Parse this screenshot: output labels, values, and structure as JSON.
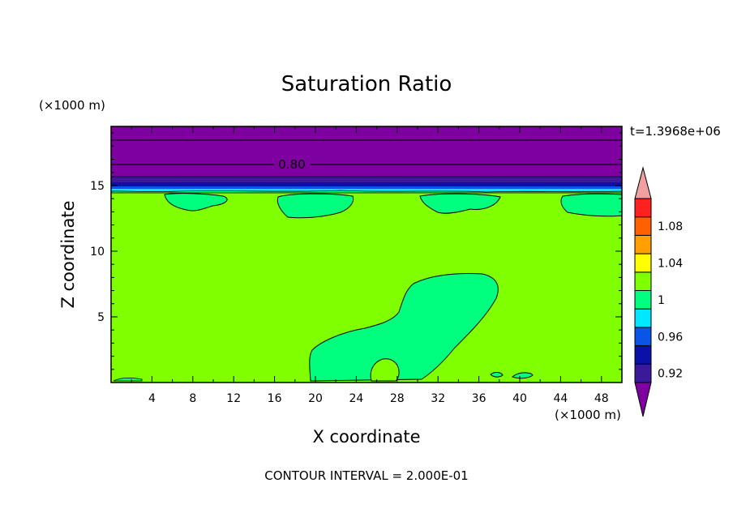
{
  "chart_data": {
    "type": "heatmap",
    "title": "Saturation Ratio",
    "xlabel": "X coordinate",
    "ylabel": "Z coordinate",
    "x_unit": "(×1000 m)",
    "y_unit": "(×1000 m)",
    "time_label": "t=1.3968e+06",
    "footer": "CONTOUR INTERVAL = 2.000E-01",
    "xlim": [
      0,
      50
    ],
    "ylim": [
      0,
      19.5
    ],
    "x_ticks": [
      "4",
      "8",
      "12",
      "16",
      "20",
      "24",
      "28",
      "32",
      "36",
      "40",
      "44",
      "48"
    ],
    "y_ticks": [
      "5",
      "10",
      "15"
    ],
    "contour_labels": [
      {
        "text": "0.80",
        "x": 18,
        "y": 17
      }
    ],
    "colorbar": {
      "levels": [
        0.92,
        0.94,
        0.96,
        0.98,
        1.0,
        1.02,
        1.04,
        1.06,
        1.08,
        1.1
      ],
      "tick_labels": [
        "0.92",
        "0.96",
        "1",
        "1.04",
        "1.08"
      ],
      "colors": [
        "#7f00a0",
        "#3a1a9a",
        "#0a10a8",
        "#0a55e8",
        "#00e8ff",
        "#00ff7f",
        "#80ff00",
        "#ffff00",
        "#ffa000",
        "#ff6000",
        "#ff2020",
        "#f0a0a0"
      ]
    },
    "regions": {
      "background_value": "1 to 1.02",
      "upper_band_value": "below 0.92",
      "moist_patches_value": "0.98 to 1"
    }
  }
}
